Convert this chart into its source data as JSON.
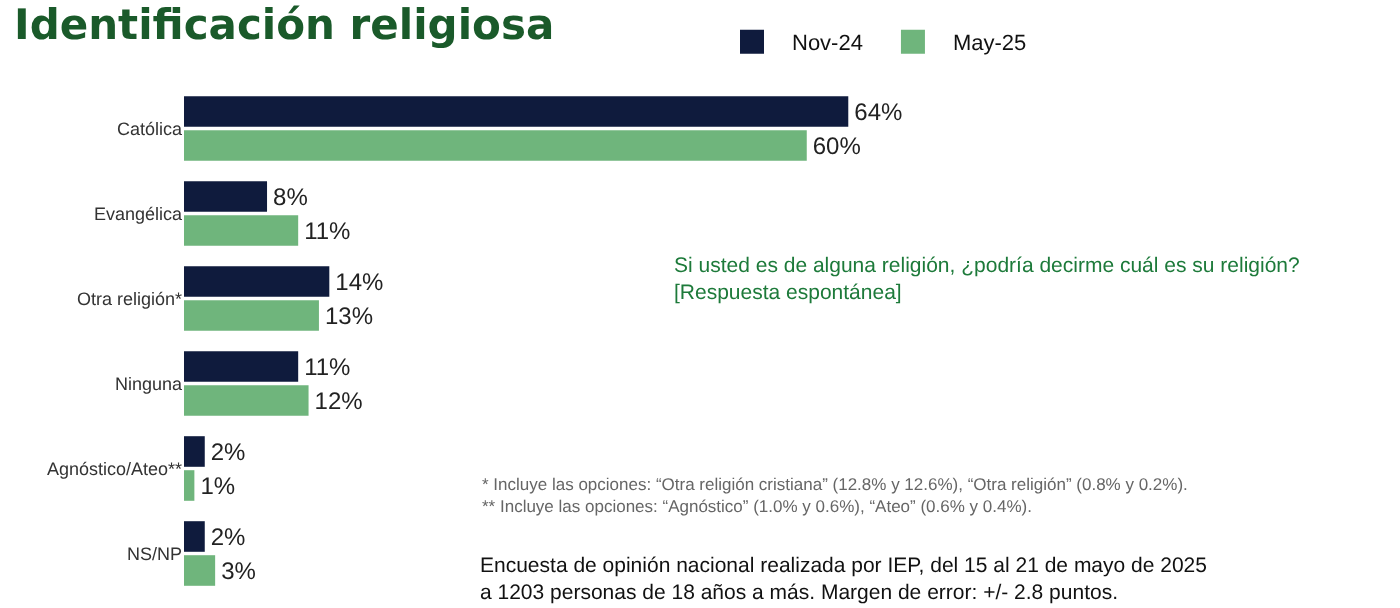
{
  "chart_data": {
    "type": "bar",
    "orientation": "horizontal",
    "title": "Identificación religiosa",
    "categories": [
      "Católica",
      "Evangélica",
      "Otra religión*",
      "Ninguna",
      "Agnóstico/Ateo**",
      "NS/NP"
    ],
    "series": [
      {
        "name": "Nov-24",
        "color": "#0f1b3d",
        "values": [
          64,
          8,
          14,
          11,
          2,
          2
        ],
        "value_labels": [
          "64%",
          "8%",
          "14%",
          "11%",
          "2%",
          "2%"
        ]
      },
      {
        "name": "May-25",
        "color": "#6fb57c",
        "values": [
          60,
          11,
          13,
          12,
          1,
          3
        ],
        "value_labels": [
          "60%",
          "11%",
          "13%",
          "12%",
          "1%",
          "3%"
        ]
      }
    ],
    "legend": "top",
    "annotations": [
      "Si usted es de alguna religión, ¿podría decirme cuál es su religión?\n[Respuesta espontánea]",
      "* Incluye las opciones: “Otra religión cristiana” (12.8% y 12.6%), “Otra religión” (0.8% y 0.2%).\n** Incluye las opciones: “Agnóstico” (1.0% y 0.6%), “Ateo” (0.6% y 0.4%).",
      "Encuesta de opinión nacional realizada por IEP, del 15 al 21 de mayo de 2025\na 1203 personas de 18 años a más. Margen de error: +/- 2.8 puntos."
    ]
  }
}
